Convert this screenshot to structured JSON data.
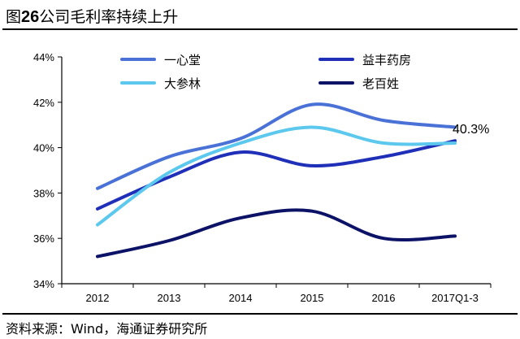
{
  "title": {
    "prefix": "图",
    "number": "26",
    "text": "公司毛利率持续上升"
  },
  "source": "资料来源：Wind，海通证券研究所",
  "colors": {
    "一心堂": "#4a72d6",
    "益丰药房": "#1f2fb8",
    "大参林": "#5cc8ee",
    "老百姓": "#0c1266"
  },
  "chart_data": {
    "type": "line",
    "title": "公司毛利率持续上升",
    "xlabel": "",
    "ylabel": "",
    "categories": [
      "2012",
      "2013",
      "2014",
      "2015",
      "2016",
      "2017Q1-3"
    ],
    "ylim": [
      34,
      44
    ],
    "yticks": [
      "34%",
      "36%",
      "38%",
      "40%",
      "42%",
      "44%"
    ],
    "grid": false,
    "legend_position": "top",
    "series": [
      {
        "name": "一心堂",
        "values": [
          38.2,
          39.6,
          40.4,
          41.9,
          41.2,
          40.9
        ]
      },
      {
        "name": "益丰药房",
        "values": [
          37.3,
          38.7,
          39.8,
          39.2,
          39.6,
          40.3
        ]
      },
      {
        "name": "大参林",
        "values": [
          36.6,
          38.9,
          40.2,
          40.9,
          40.2,
          40.2
        ]
      },
      {
        "name": "老百姓",
        "values": [
          35.2,
          35.9,
          36.9,
          37.2,
          36.0,
          36.1
        ]
      }
    ],
    "annotation": {
      "text": "40.3%",
      "category": "2017Q1-3",
      "value": 40.3
    }
  }
}
